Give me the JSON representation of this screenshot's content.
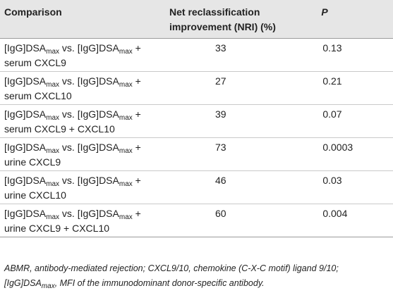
{
  "table": {
    "headers": {
      "comparison": "Comparison",
      "nri_line1": "Net reclassification",
      "nri_line2": "improvement (NRI) (%)",
      "p": "P"
    },
    "dsa": {
      "prefix": "[IgG]DSA",
      "subscript": "max",
      "vs": " vs. ",
      "plus": " +"
    },
    "rows": [
      {
        "biomarker": "serum CXCL9",
        "nri": "33",
        "p": "0.13"
      },
      {
        "biomarker": "serum CXCL10",
        "nri": "27",
        "p": "0.21"
      },
      {
        "biomarker": "serum CXCL9 + CXCL10",
        "nri": "39",
        "p": "0.07"
      },
      {
        "biomarker": "urine CXCL9",
        "nri": "73",
        "p": "0.0003"
      },
      {
        "biomarker": "urine CXCL10",
        "nri": "46",
        "p": "0.03"
      },
      {
        "biomarker": "urine CXCL9 + CXCL10",
        "nri": "60",
        "p": "0.004"
      }
    ]
  },
  "footnote": {
    "line1": "ABMR, antibody-mediated rejection; CXCL9/10, chemokine (C-X-C motif) ligand 9/10;",
    "line2_prefix": "[IgG]DSA",
    "line2_subscript": "max",
    "line2_rest": ", MFI of the immunodominant donor-specific antibody."
  },
  "colors": {
    "header_bg": "#e6e6e6",
    "text": "#222222",
    "rule": "#9a9a9a"
  }
}
